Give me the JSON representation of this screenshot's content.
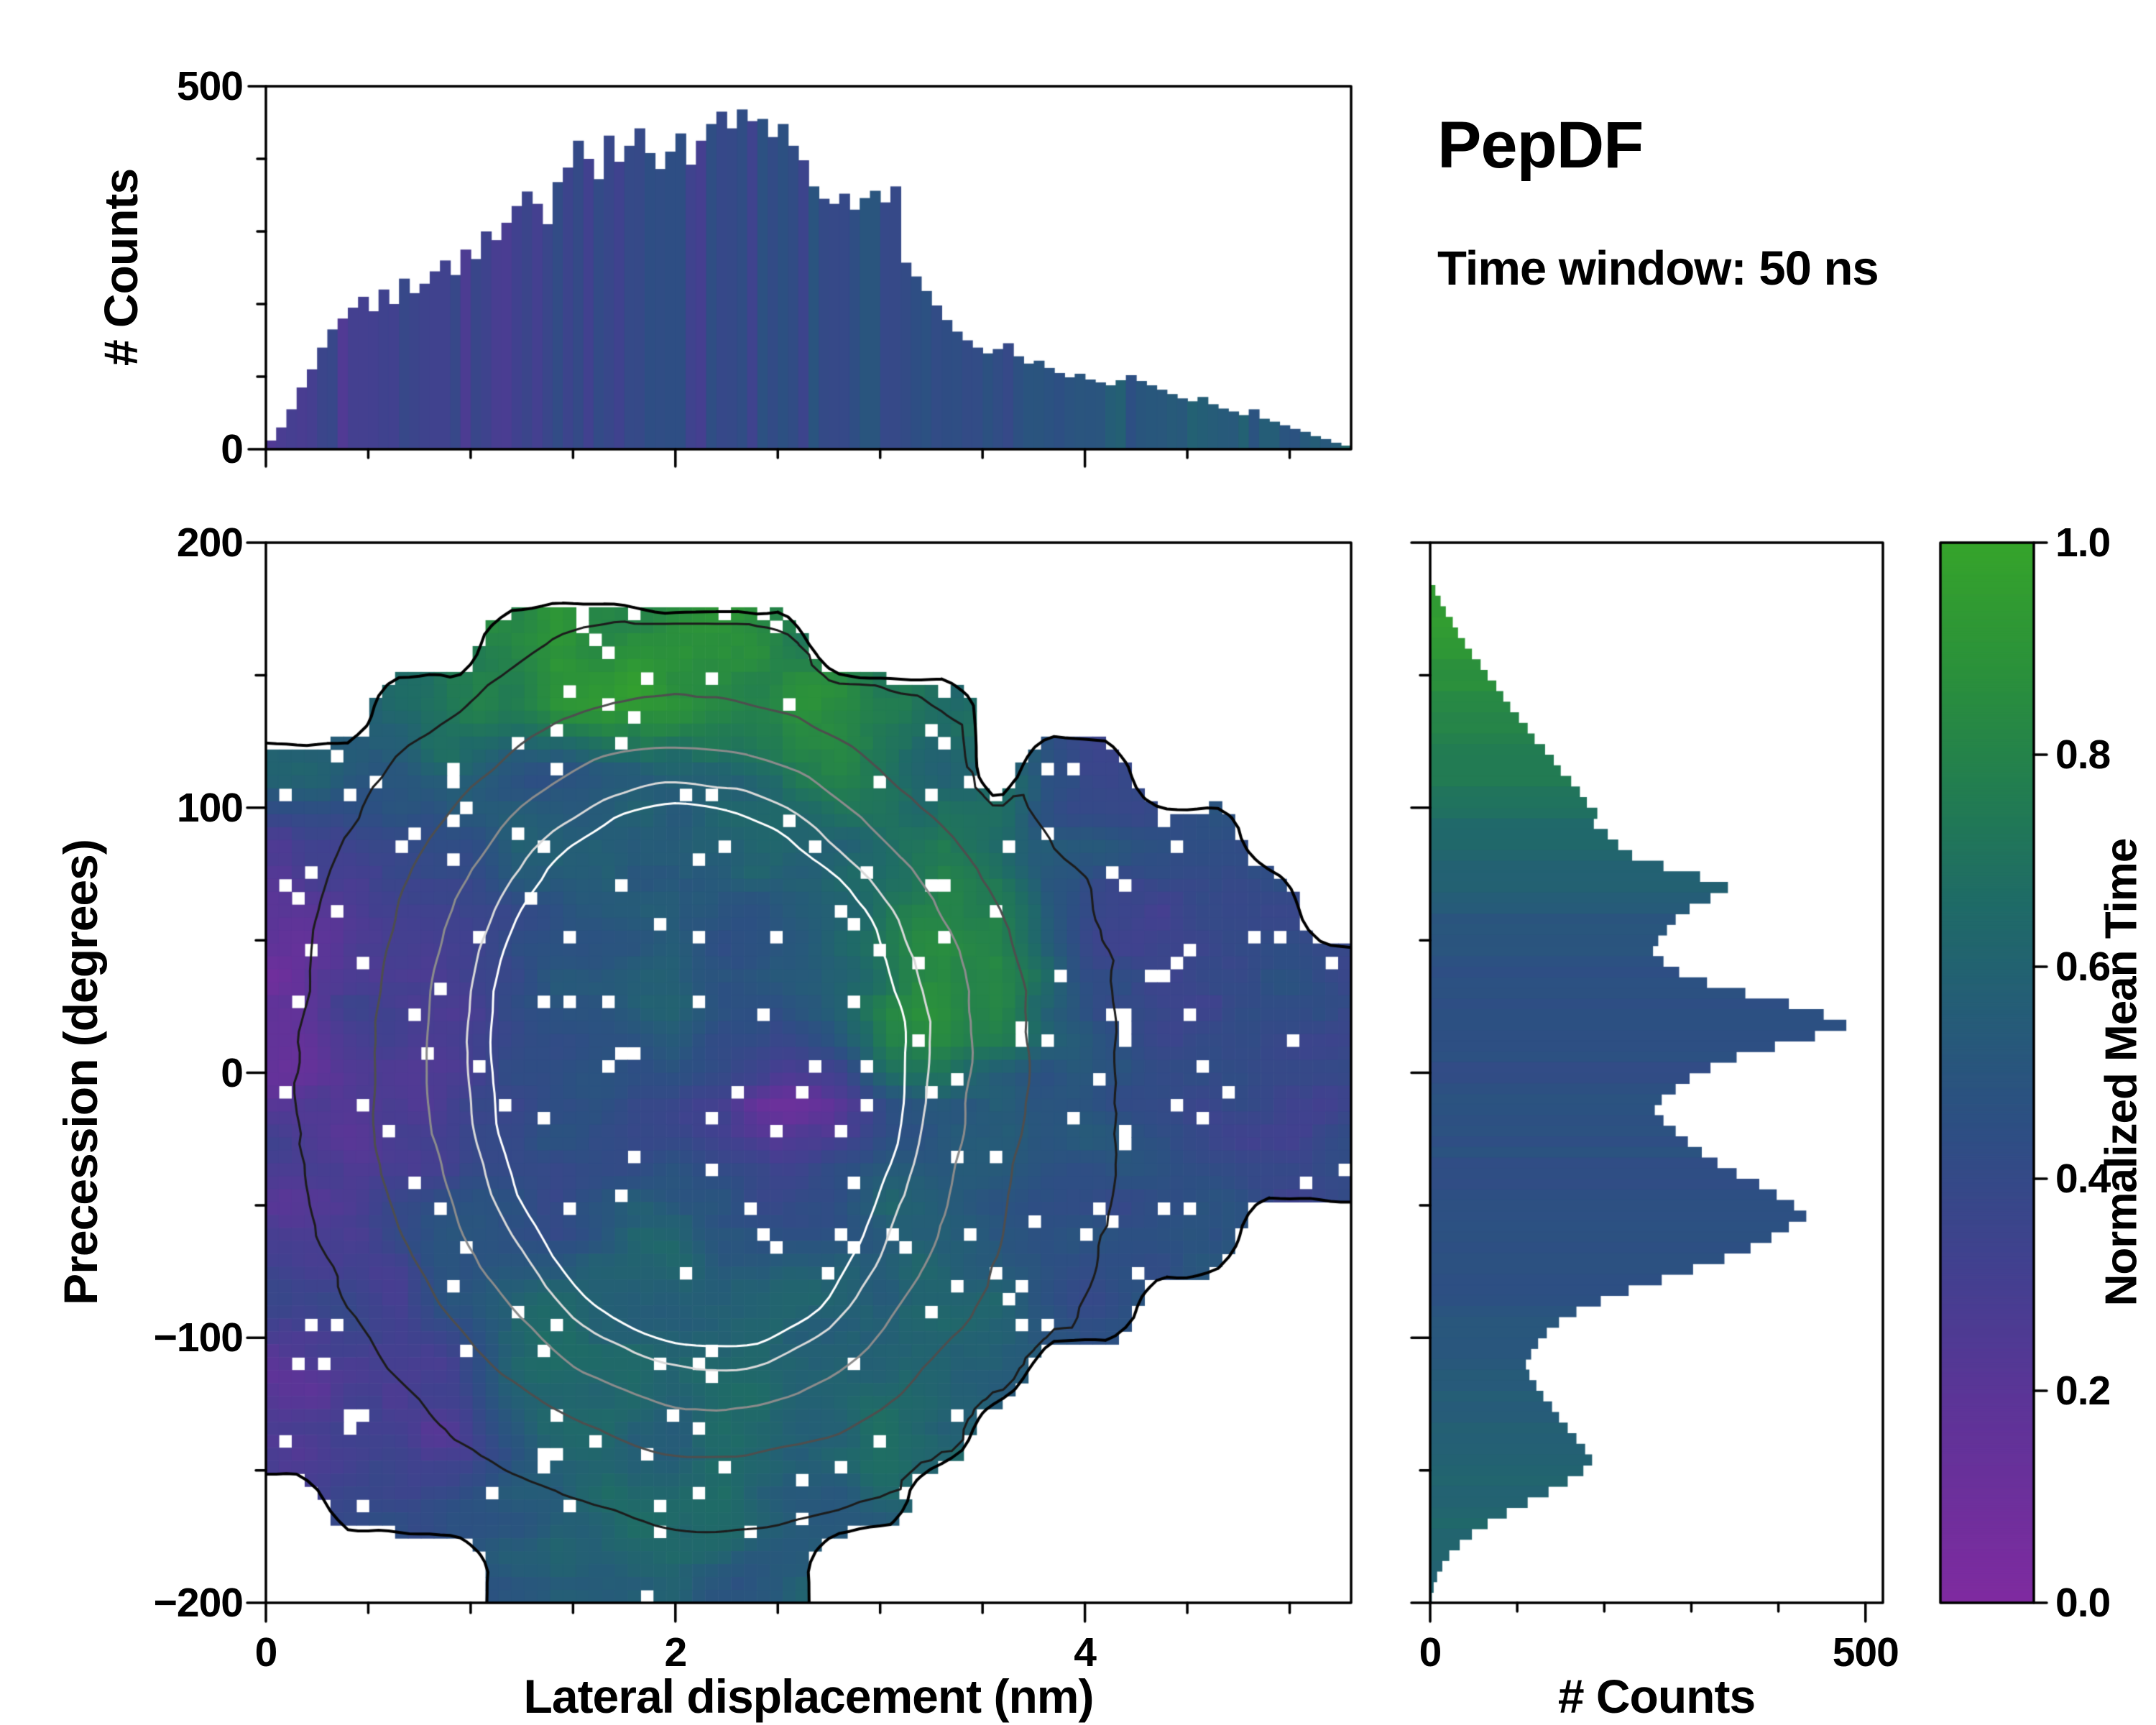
{
  "title": "PepDF",
  "subtitle": "Time window: 50 ns",
  "colors": {
    "background": "#ffffff",
    "axis": "#000000",
    "text": "#000000"
  },
  "colorbar": {
    "label": "Normalized Mean Time",
    "range": [
      0,
      1
    ],
    "ticks": [
      "0.0",
      "0.2",
      "0.4",
      "0.6",
      "0.8",
      "1.0"
    ],
    "tick_values": [
      0,
      0.2,
      0.4,
      0.6,
      0.8,
      1.0
    ],
    "stops": [
      [
        0.0,
        "#7f2ba0"
      ],
      [
        0.18,
        "#5e3498"
      ],
      [
        0.32,
        "#41418f"
      ],
      [
        0.45,
        "#2d4f83"
      ],
      [
        0.56,
        "#255d77"
      ],
      [
        0.66,
        "#1f6b67"
      ],
      [
        0.76,
        "#227c52"
      ],
      [
        0.88,
        "#2b913b"
      ],
      [
        1.0,
        "#36a42b"
      ]
    ]
  },
  "chart_data": [
    {
      "id": "top-marginal-histogram",
      "type": "bar",
      "orientation": "vertical",
      "ylabel": "# Counts",
      "ylim": [
        0,
        500
      ],
      "yticks": [
        0,
        500
      ],
      "x_range": [
        0,
        5.3
      ],
      "bin_width": 0.05,
      "values": [
        12,
        30,
        55,
        85,
        110,
        140,
        165,
        180,
        195,
        210,
        190,
        220,
        200,
        235,
        215,
        228,
        245,
        260,
        240,
        275,
        262,
        300,
        288,
        312,
        335,
        355,
        338,
        310,
        368,
        388,
        425,
        400,
        372,
        432,
        396,
        418,
        442,
        408,
        386,
        410,
        435,
        392,
        425,
        448,
        465,
        442,
        468,
        452,
        455,
        430,
        448,
        418,
        398,
        362,
        345,
        338,
        352,
        330,
        346,
        356,
        340,
        362,
        257,
        238,
        218,
        198,
        178,
        162,
        150,
        140,
        132,
        138,
        146,
        128,
        118,
        122,
        112,
        105,
        99,
        104,
        96,
        92,
        88,
        95,
        102,
        94,
        88,
        82,
        76,
        70,
        66,
        72,
        62,
        56,
        52,
        47,
        55,
        42,
        38,
        33,
        28,
        24,
        18,
        14,
        9,
        5
      ]
    },
    {
      "id": "precession-vs-displacement-heatmap",
      "type": "heatmap",
      "xlabel": "Lateral displacement (nm)",
      "ylabel": "Precession (degrees)",
      "xlim": [
        0,
        5.3
      ],
      "ylim": [
        -200,
        200
      ],
      "xticks": [
        0,
        2,
        4
      ],
      "yticks": [
        -200,
        -100,
        0,
        100,
        200
      ],
      "color_label": "Normalized Mean Time",
      "color_range": [
        0,
        1
      ],
      "grid_rows": 16,
      "grid_cols": 20,
      "grid_y_top": 200,
      "grid_y_bottom": -200,
      "values": [
        [
          null,
          null,
          null,
          null,
          null,
          null,
          null,
          null,
          null,
          null,
          null,
          null,
          null,
          null,
          null,
          null,
          null,
          null,
          null,
          null
        ],
        [
          null,
          null,
          null,
          null,
          0.85,
          0.9,
          0.88,
          0.9,
          0.85,
          0.82,
          null,
          null,
          null,
          null,
          null,
          null,
          null,
          null,
          null,
          null
        ],
        [
          null,
          null,
          0.7,
          0.8,
          0.85,
          0.9,
          0.92,
          0.88,
          0.9,
          0.85,
          0.8,
          0.75,
          0.6,
          null,
          null,
          null,
          null,
          null,
          null,
          null
        ],
        [
          0.6,
          0.55,
          0.5,
          0.55,
          0.5,
          0.45,
          0.5,
          0.55,
          0.6,
          0.7,
          0.8,
          0.75,
          0.65,
          null,
          0.45,
          0.42,
          null,
          null,
          null,
          null
        ],
        [
          0.3,
          0.35,
          0.4,
          0.45,
          0.5,
          0.5,
          0.55,
          0.5,
          0.55,
          0.6,
          0.65,
          0.75,
          0.8,
          0.7,
          0.5,
          0.45,
          0.42,
          0.45,
          null,
          null
        ],
        [
          0.25,
          0.3,
          0.35,
          0.4,
          0.45,
          0.5,
          0.55,
          0.6,
          0.5,
          0.55,
          0.6,
          0.75,
          0.8,
          0.7,
          0.5,
          0.42,
          0.4,
          0.45,
          0.42,
          null
        ],
        [
          0.2,
          0.25,
          0.3,
          0.35,
          0.4,
          0.45,
          0.5,
          0.55,
          0.5,
          0.55,
          0.6,
          0.7,
          0.8,
          0.75,
          0.6,
          0.45,
          0.42,
          0.4,
          0.45,
          0.42
        ],
        [
          0.2,
          0.25,
          0.3,
          0.35,
          0.4,
          0.42,
          0.45,
          0.5,
          0.45,
          0.4,
          0.5,
          0.8,
          0.85,
          0.75,
          0.55,
          0.45,
          0.4,
          0.42,
          0.4,
          0.38
        ],
        [
          0.22,
          0.28,
          0.32,
          0.38,
          0.42,
          0.45,
          0.48,
          0.4,
          0.3,
          0.15,
          0.2,
          0.45,
          0.55,
          0.5,
          0.45,
          0.42,
          0.4,
          0.38,
          0.4,
          0.36
        ],
        [
          0.25,
          0.3,
          0.35,
          0.4,
          0.45,
          0.42,
          0.45,
          0.5,
          0.48,
          0.45,
          0.5,
          0.55,
          0.5,
          0.48,
          0.45,
          0.42,
          0.44,
          0.4,
          0.42,
          0.4
        ],
        [
          0.3,
          0.28,
          0.35,
          0.4,
          0.45,
          0.5,
          0.55,
          0.6,
          0.55,
          0.5,
          0.52,
          0.55,
          0.5,
          0.52,
          0.5,
          0.48,
          0.45,
          0.45,
          null,
          null
        ],
        [
          0.35,
          0.4,
          0.3,
          0.45,
          0.5,
          0.55,
          0.6,
          0.58,
          0.55,
          0.6,
          0.58,
          0.55,
          0.6,
          0.55,
          0.5,
          0.48,
          null,
          null,
          null,
          null
        ],
        [
          0.25,
          0.3,
          0.35,
          0.4,
          0.55,
          0.6,
          0.62,
          0.6,
          0.58,
          0.6,
          0.62,
          0.6,
          0.58,
          0.55,
          null,
          null,
          null,
          null,
          null,
          null
        ],
        [
          0.2,
          0.25,
          0.3,
          0.35,
          0.5,
          0.6,
          0.62,
          0.6,
          0.62,
          0.6,
          0.58,
          0.6,
          0.55,
          null,
          null,
          null,
          null,
          null,
          null,
          null
        ],
        [
          null,
          0.3,
          0.35,
          0.45,
          0.55,
          0.6,
          0.62,
          0.6,
          0.6,
          0.58,
          0.6,
          0.58,
          null,
          null,
          null,
          null,
          null,
          null,
          null,
          null
        ],
        [
          null,
          null,
          null,
          null,
          0.55,
          0.6,
          0.58,
          0.6,
          0.55,
          0.58,
          null,
          null,
          null,
          null,
          null,
          null,
          null,
          null,
          null,
          null
        ]
      ]
    },
    {
      "id": "right-marginal-histogram",
      "type": "bar",
      "orientation": "horizontal",
      "xlabel": "# Counts",
      "xlim": [
        0,
        520
      ],
      "xticks": [
        0,
        500
      ],
      "y_range": [
        200,
        -200
      ],
      "bin_width": 4,
      "values": [
        0,
        0,
        0,
        0,
        6,
        12,
        18,
        26,
        32,
        40,
        48,
        58,
        66,
        76,
        84,
        92,
        102,
        112,
        120,
        132,
        142,
        150,
        162,
        172,
        180,
        192,
        188,
        204,
        216,
        232,
        268,
        310,
        342,
        322,
        298,
        282,
        272,
        262,
        256,
        268,
        286,
        318,
        362,
        412,
        452,
        478,
        442,
        396,
        352,
        322,
        298,
        282,
        266,
        258,
        268,
        282,
        296,
        312,
        330,
        352,
        378,
        398,
        418,
        432,
        412,
        392,
        368,
        338,
        302,
        266,
        228,
        196,
        168,
        148,
        134,
        124,
        116,
        110,
        114,
        122,
        130,
        140,
        148,
        158,
        168,
        178,
        186,
        176,
        158,
        136,
        112,
        88,
        66,
        48,
        34,
        22,
        14,
        8,
        4,
        2
      ]
    }
  ]
}
